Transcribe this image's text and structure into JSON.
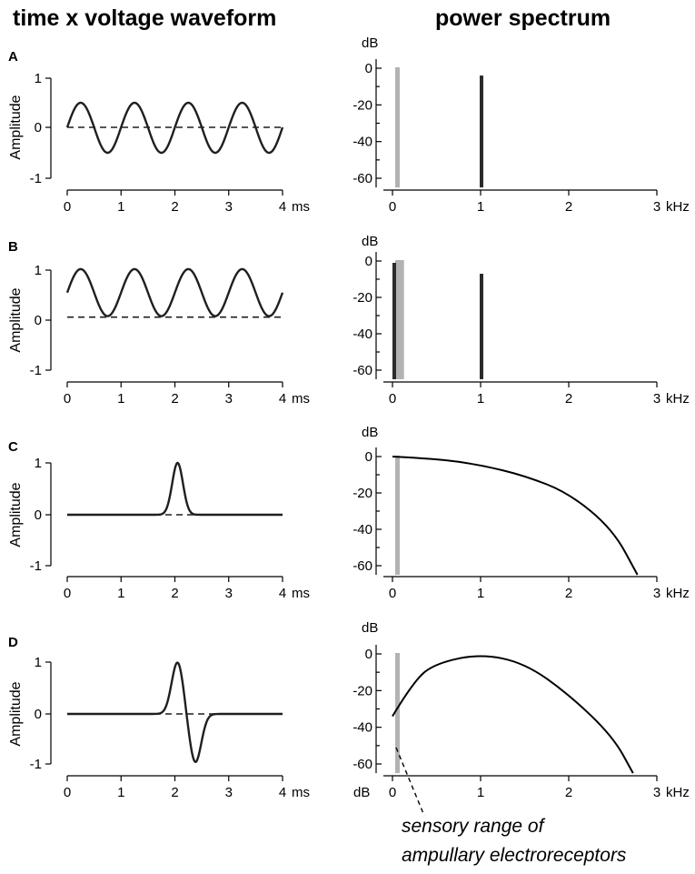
{
  "headers": {
    "left": "time x voltage waveform",
    "right": "power spectrum"
  },
  "annotation": {
    "line1": "sensory range of",
    "line2": "ampullary electroreceptors"
  },
  "colors": {
    "trace": "#1f1f1f",
    "sensory_band": "#b3b3b3",
    "spectral_line": "#2b2b2b"
  },
  "chart_data": [
    {
      "panel": "A",
      "side": "waveform",
      "type": "line",
      "title": "",
      "xlabel": "",
      "ylabel": "Amplitude",
      "x_unit": "ms",
      "xlim": [
        0,
        4
      ],
      "ylim": [
        -1,
        1
      ],
      "xticks": [
        "0",
        "1",
        "2",
        "3",
        "4"
      ],
      "yticks": [
        "1",
        "0",
        "-1"
      ],
      "waveform": "sine",
      "frequency_khz": 1,
      "amplitude": 0.5,
      "offset": 0,
      "baseline": 0,
      "series": [
        {
          "x": [
            0,
            0.25,
            0.75,
            1.25,
            1.75,
            2.25,
            2.75,
            3.25,
            3.75,
            4.0
          ],
          "y": [
            0,
            0.5,
            -0.5,
            0.5,
            -0.5,
            0.5,
            -0.5,
            0.5,
            -0.5,
            -0.05
          ]
        }
      ]
    },
    {
      "panel": "A",
      "side": "spectrum",
      "type": "bar",
      "title": "",
      "xlabel": "",
      "ylabel": "dB",
      "x_unit": "kHz",
      "xlim": [
        0,
        3
      ],
      "ylim": [
        -65,
        0
      ],
      "xticks": [
        "0",
        "1",
        "2",
        "3"
      ],
      "yticks": [
        "0",
        "-20",
        "-40",
        "-60"
      ],
      "sensory_band_khz": [
        0,
        0.05
      ],
      "lines": [
        {
          "x": 1.0,
          "y": -4
        }
      ]
    },
    {
      "panel": "B",
      "side": "waveform",
      "type": "line",
      "title": "",
      "xlabel": "",
      "ylabel": "Amplitude",
      "x_unit": "ms",
      "xlim": [
        0,
        4
      ],
      "ylim": [
        -1,
        1
      ],
      "xticks": [
        "0",
        "1",
        "2",
        "3",
        "4"
      ],
      "yticks": [
        "1",
        "0",
        "-1"
      ],
      "waveform": "sine",
      "frequency_khz": 1,
      "amplitude": 0.47,
      "offset": 0.55,
      "baseline": 0.06,
      "series": [
        {
          "x": [
            0,
            0.25,
            0.75,
            1.25,
            1.75,
            2.25,
            2.75,
            3.25,
            3.75,
            4.0
          ],
          "y": [
            0.55,
            1.02,
            0.08,
            1.02,
            0.08,
            1.02,
            0.08,
            1.02,
            0.08,
            0.5
          ]
        }
      ]
    },
    {
      "panel": "B",
      "side": "spectrum",
      "type": "bar",
      "title": "",
      "xlabel": "",
      "ylabel": "dB",
      "x_unit": "kHz",
      "xlim": [
        0,
        3
      ],
      "ylim": [
        -65,
        0
      ],
      "xticks": [
        "0",
        "1",
        "2",
        "3"
      ],
      "yticks": [
        "0",
        "-20",
        "-40",
        "-60"
      ],
      "sensory_band_khz": [
        0,
        0.1
      ],
      "lines": [
        {
          "x": 0.01,
          "y": -1
        },
        {
          "x": 1.0,
          "y": -7
        }
      ]
    },
    {
      "panel": "C",
      "side": "waveform",
      "type": "line",
      "title": "",
      "xlabel": "",
      "ylabel": "Amplitude",
      "x_unit": "ms",
      "xlim": [
        0,
        4
      ],
      "ylim": [
        -1,
        1
      ],
      "xticks": [
        "0",
        "1",
        "2",
        "3",
        "4"
      ],
      "yticks": [
        "1",
        "0",
        "-1"
      ],
      "waveform": "gaussian",
      "center_ms": 2.05,
      "sigma_ms": 0.1,
      "amplitude": 1.0,
      "baseline": 0,
      "series": [
        {
          "x": [
            0,
            1.8,
            1.9,
            2.05,
            2.2,
            2.3,
            4.0
          ],
          "y": [
            0,
            0.05,
            0.32,
            1.0,
            0.32,
            0.05,
            0
          ]
        }
      ]
    },
    {
      "panel": "C",
      "side": "spectrum",
      "type": "line",
      "title": "",
      "xlabel": "",
      "ylabel": "dB",
      "x_unit": "kHz",
      "xlim": [
        0,
        3
      ],
      "ylim": [
        -65,
        0
      ],
      "xticks": [
        "0",
        "1",
        "2",
        "3"
      ],
      "yticks": [
        "0",
        "-20",
        "-40",
        "-60"
      ],
      "sensory_band_khz": [
        0,
        0.05
      ],
      "series": [
        {
          "x": [
            0,
            0.5,
            1.0,
            1.5,
            2.0,
            2.5,
            2.78
          ],
          "y": [
            0,
            -1.2,
            -4.6,
            -10.5,
            -20,
            -40,
            -65
          ]
        }
      ]
    },
    {
      "panel": "D",
      "side": "waveform",
      "type": "line",
      "title": "",
      "xlabel": "",
      "ylabel": "Amplitude",
      "x_unit": "ms",
      "xlim": [
        0,
        4
      ],
      "ylim": [
        -1,
        1
      ],
      "xticks": [
        "0",
        "1",
        "2",
        "3",
        "4"
      ],
      "yticks": [
        "1",
        "0",
        "-1"
      ],
      "waveform": "biphasic",
      "pos_center_ms": 2.05,
      "neg_center_ms": 2.38,
      "sigma_ms": 0.11,
      "amplitude": 1.0,
      "baseline": 0,
      "series": [
        {
          "x": [
            0,
            1.8,
            2.05,
            2.22,
            2.38,
            2.6,
            4.0
          ],
          "y": [
            0,
            0.08,
            1.0,
            0,
            -0.97,
            -0.05,
            0
          ]
        }
      ]
    },
    {
      "panel": "D",
      "side": "spectrum",
      "type": "line",
      "title": "",
      "xlabel": "",
      "ylabel": "dB",
      "x_unit": "kHz",
      "xlim": [
        0,
        3
      ],
      "ylim": [
        -65,
        0
      ],
      "xticks": [
        "0",
        "1",
        "2",
        "3"
      ],
      "yticks": [
        "0",
        "-20",
        "-40",
        "-60"
      ],
      "xtick_prefix": "dB",
      "sensory_band_khz": [
        0,
        0.05
      ],
      "series": [
        {
          "x": [
            0,
            0.25,
            0.5,
            1.0,
            1.5,
            2.0,
            2.5,
            2.73
          ],
          "y": [
            -34,
            -14,
            -5,
            0,
            -5,
            -22,
            -45,
            -65
          ]
        }
      ]
    }
  ]
}
